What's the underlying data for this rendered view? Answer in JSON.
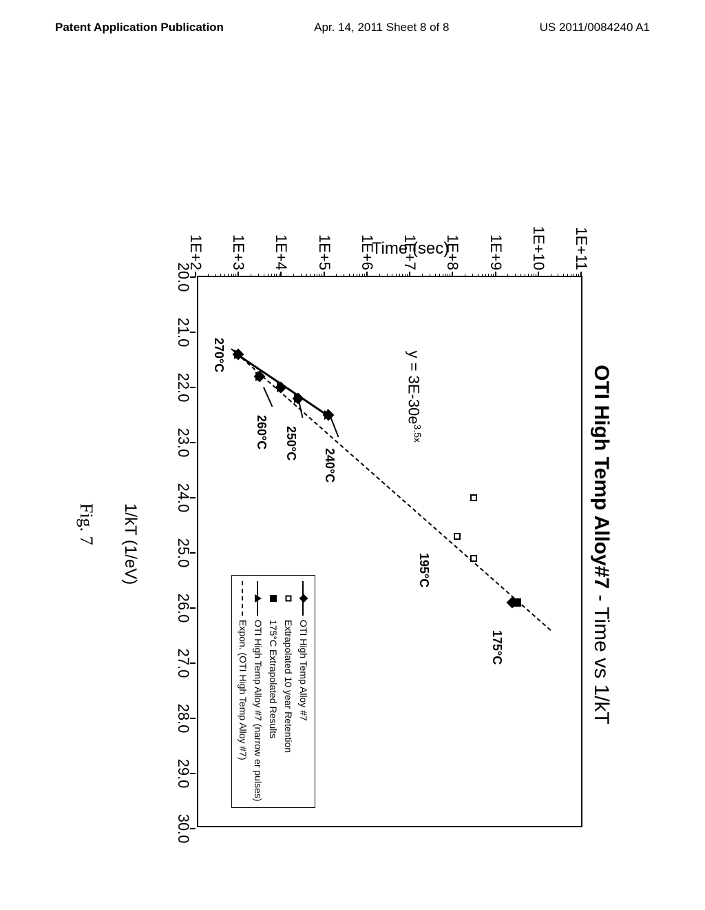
{
  "header": {
    "left": "Patent Application Publication",
    "center": "Apr. 14, 2011  Sheet 8 of 8",
    "right": "US 2011/0084240 A1"
  },
  "figure_caption": "Fig. 7",
  "chart": {
    "type": "scatter-log-linear",
    "title_bold": "OTI High Temp Alloy#7",
    "title_rest": " - Time vs 1/kT",
    "xlabel": "1/kT (1/eV)",
    "ylabel": "Time (sec)",
    "xlim": [
      20.0,
      30.0
    ],
    "ylim_exp": [
      2,
      11
    ],
    "xticks": [
      "20.0",
      "21.0",
      "22.0",
      "23.0",
      "24.0",
      "25.0",
      "26.0",
      "27.0",
      "28.0",
      "29.0",
      "30.0"
    ],
    "yticks": [
      "1E+2",
      "1E+3",
      "1E+4",
      "1E+5",
      "1E+6",
      "1E+7",
      "1E+8",
      "1E+9",
      "1E+10",
      "1E+11"
    ],
    "equation": {
      "text": "y = 3E-30e",
      "sup": "3.5x",
      "x": 23.0,
      "yexp": 7.1
    },
    "annotations": [
      {
        "label": "175°C",
        "x": 26.4,
        "yexp": 9.2
      },
      {
        "label": "195°C",
        "x": 25.0,
        "yexp": 7.5
      },
      {
        "label": "240°C",
        "x": 23.1,
        "yexp": 5.3
      },
      {
        "label": "250°C",
        "x": 22.7,
        "yexp": 4.4
      },
      {
        "label": "260°C",
        "x": 22.5,
        "yexp": 3.7
      },
      {
        "label": "270°C",
        "x": 21.1,
        "yexp": 2.7
      }
    ],
    "annotation_lines": [
      {
        "from_x": 22.9,
        "from_yexp": 5.35,
        "to_x": 22.4,
        "to_yexp": 5.1
      },
      {
        "from_x": 22.55,
        "from_yexp": 4.5,
        "to_x": 22.2,
        "to_yexp": 4.4
      },
      {
        "from_x": 22.35,
        "from_yexp": 3.8,
        "to_x": 22.0,
        "to_yexp": 3.6
      }
    ],
    "series_diamond": [
      {
        "x": 21.4,
        "yexp": 3.0
      },
      {
        "x": 21.8,
        "yexp": 3.5
      },
      {
        "x": 22.0,
        "yexp": 4.0
      },
      {
        "x": 22.2,
        "yexp": 4.4
      },
      {
        "x": 22.5,
        "yexp": 5.1
      },
      {
        "x": 25.9,
        "yexp": 9.4
      }
    ],
    "series_open_square": [
      {
        "x": 24.0,
        "yexp": 8.5
      },
      {
        "x": 24.7,
        "yexp": 8.1
      },
      {
        "x": 25.1,
        "yexp": 8.5
      }
    ],
    "series_filled_square": [
      {
        "x": 25.9,
        "yexp": 9.5
      }
    ],
    "series_triangle": [
      {
        "x": 21.4,
        "yexp": 3.0
      },
      {
        "x": 21.8,
        "yexp": 3.5
      },
      {
        "x": 22.0,
        "yexp": 4.0
      },
      {
        "x": 22.2,
        "yexp": 4.4
      },
      {
        "x": 22.5,
        "yexp": 5.1
      }
    ],
    "trend_line": {
      "x1": 21.3,
      "y1exp": 2.85,
      "x2": 26.4,
      "y2exp": 10.3
    },
    "solid_line": {
      "x1": 21.4,
      "y1exp": 3.0,
      "x2": 22.5,
      "y2exp": 5.1
    },
    "legend": {
      "x": 25.4,
      "yexp": 4.8,
      "items": [
        {
          "symbol": "diamond-line",
          "label": "OTI High Temp Alloy #7"
        },
        {
          "symbol": "open-square",
          "label": "Extrapolated 10 year Retention"
        },
        {
          "symbol": "filled-square",
          "label": "175°C Extrapolated Results"
        },
        {
          "symbol": "triangle-line",
          "label": "OTI High Temp Alloy #7 (narrow er pulses)"
        },
        {
          "symbol": "dashed",
          "label": "Expon. (OTI High Temp Alloy #7)"
        }
      ]
    }
  },
  "colors": {
    "background": "#ffffff",
    "axis": "#000000",
    "marker": "#000000",
    "text": "#000000"
  }
}
